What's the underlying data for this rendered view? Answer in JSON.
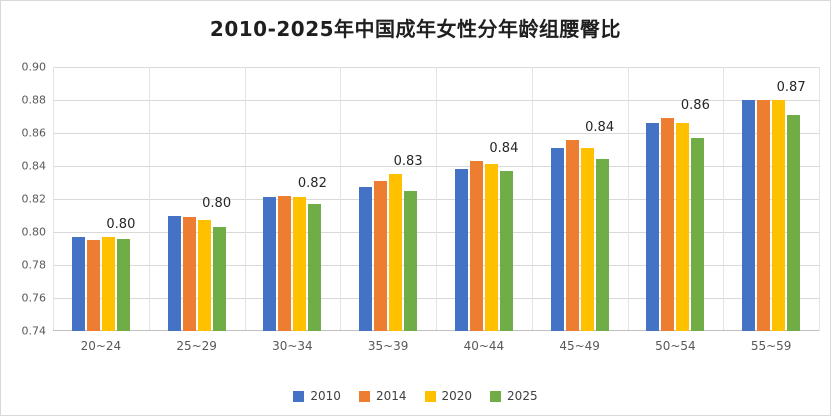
{
  "chart_data": {
    "type": "bar",
    "title": "2010-2025年中国成年女性分年龄组腰臀比",
    "categories": [
      "20~24",
      "25~29",
      "30~34",
      "35~39",
      "40~44",
      "45~49",
      "50~54",
      "55~59"
    ],
    "series": [
      {
        "name": "2010",
        "color": "#4472C4",
        "values": [
          0.797,
          0.81,
          0.821,
          0.827,
          0.838,
          0.851,
          0.866,
          0.88
        ]
      },
      {
        "name": "2014",
        "color": "#ED7D31",
        "values": [
          0.795,
          0.809,
          0.822,
          0.831,
          0.843,
          0.856,
          0.869,
          0.88
        ]
      },
      {
        "name": "2020",
        "color": "#FFC000",
        "values": [
          0.797,
          0.807,
          0.821,
          0.835,
          0.841,
          0.851,
          0.866,
          0.88
        ]
      },
      {
        "name": "2025",
        "color": "#70AD47",
        "values": [
          0.796,
          0.803,
          0.817,
          0.825,
          0.837,
          0.844,
          0.857,
          0.871
        ]
      }
    ],
    "data_labels": [
      "0.80",
      "0.80",
      "0.82",
      "0.83",
      "0.84",
      "0.84",
      "0.86",
      "0.87"
    ],
    "ylim": [
      0.74,
      0.9
    ],
    "ytick_step": 0.02,
    "ytick_labels": [
      "0.74",
      "0.76",
      "0.78",
      "0.80",
      "0.82",
      "0.84",
      "0.86",
      "0.88",
      "0.90"
    ],
    "grid": true,
    "legend_position": "bottom"
  }
}
